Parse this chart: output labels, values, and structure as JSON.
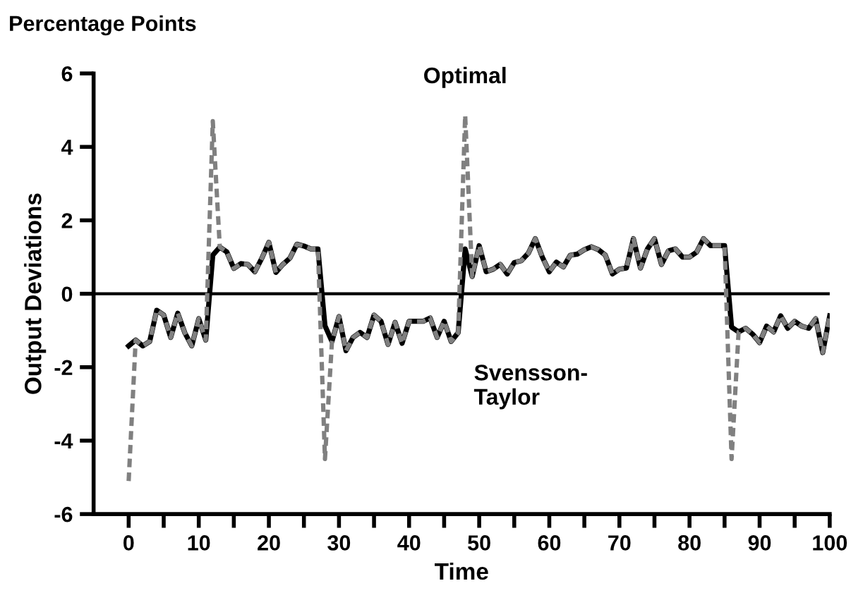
{
  "chart_data": {
    "type": "line",
    "title": "Percentage Points",
    "xlabel": "Time",
    "ylabel": "Output Deviations",
    "x": [
      0,
      1,
      2,
      3,
      4,
      5,
      6,
      7,
      8,
      9,
      10,
      11,
      12,
      13,
      14,
      15,
      16,
      17,
      18,
      19,
      20,
      21,
      22,
      23,
      24,
      25,
      26,
      27,
      28,
      29,
      30,
      31,
      32,
      33,
      34,
      35,
      36,
      37,
      38,
      39,
      40,
      41,
      42,
      43,
      44,
      45,
      46,
      47,
      48,
      49,
      50,
      51,
      52,
      53,
      54,
      55,
      56,
      57,
      58,
      59,
      60,
      61,
      62,
      63,
      64,
      65,
      66,
      67,
      68,
      69,
      70,
      71,
      72,
      73,
      74,
      75,
      76,
      77,
      78,
      79,
      80,
      81,
      82,
      83,
      84,
      85,
      86,
      87,
      88,
      89,
      90,
      91,
      92,
      93,
      94,
      95,
      96,
      97,
      98,
      99,
      100
    ],
    "series": [
      {
        "color": "#000000",
        "line_style": "solid",
        "values": [
          -1.42,
          -1.26,
          -1.42,
          -1.3,
          -0.45,
          -0.58,
          -1.19,
          -0.53,
          -1.06,
          -1.42,
          -0.68,
          -1.26,
          1.05,
          1.27,
          1.14,
          0.69,
          0.82,
          0.8,
          0.6,
          0.97,
          1.4,
          0.58,
          0.8,
          0.97,
          1.35,
          1.3,
          1.22,
          1.22,
          -0.87,
          -1.3,
          -0.62,
          -1.55,
          -1.19,
          -1.05,
          -1.19,
          -0.58,
          -0.75,
          -1.38,
          -0.78,
          -1.35,
          -0.75,
          -0.75,
          -0.75,
          -0.66,
          -1.19,
          -0.75,
          -1.3,
          -1.06,
          1.22,
          0.47,
          1.31,
          0.6,
          0.67,
          0.8,
          0.54,
          0.85,
          0.9,
          1.1,
          1.5,
          1.0,
          0.6,
          0.86,
          0.73,
          1.05,
          1.08,
          1.2,
          1.28,
          1.2,
          1.05,
          0.54,
          0.67,
          0.7,
          1.5,
          0.7,
          1.22,
          1.5,
          0.8,
          1.17,
          1.22,
          1.0,
          1.0,
          1.13,
          1.5,
          1.31,
          1.31,
          1.31,
          -0.91,
          -1.04,
          -0.94,
          -1.1,
          -1.33,
          -0.88,
          -1.04,
          -0.6,
          -0.94,
          -0.75,
          -0.88,
          -0.94,
          -0.68,
          -1.6,
          -0.6
        ]
      },
      {
        "color": "#808080",
        "line_style": "dashed",
        "values": [
          -5.1,
          -1.26,
          -1.42,
          -1.3,
          -0.45,
          -0.58,
          -1.19,
          -0.53,
          -1.06,
          -1.42,
          -0.68,
          -1.26,
          4.7,
          1.27,
          1.14,
          0.69,
          0.82,
          0.8,
          0.6,
          0.97,
          1.4,
          0.58,
          0.8,
          0.97,
          1.35,
          1.3,
          1.22,
          1.22,
          -4.5,
          -1.3,
          -0.62,
          -1.55,
          -1.19,
          -1.05,
          -1.19,
          -0.58,
          -0.75,
          -1.38,
          -0.78,
          -1.35,
          -0.75,
          -0.75,
          -0.75,
          -0.66,
          -1.19,
          -0.75,
          -1.3,
          -1.06,
          4.86,
          0.47,
          1.31,
          0.6,
          0.67,
          0.8,
          0.54,
          0.85,
          0.9,
          1.1,
          1.5,
          1.0,
          0.6,
          0.86,
          0.73,
          1.05,
          1.08,
          1.2,
          1.28,
          1.2,
          1.05,
          0.54,
          0.67,
          0.7,
          1.5,
          0.7,
          1.22,
          1.5,
          0.8,
          1.17,
          1.22,
          1.0,
          1.0,
          1.13,
          1.5,
          1.31,
          1.31,
          1.31,
          -4.5,
          -1.04,
          -0.94,
          -1.1,
          -1.33,
          -0.88,
          -1.04,
          -0.6,
          -0.94,
          -0.75,
          -0.88,
          -0.94,
          -0.68,
          -1.6,
          -0.6
        ]
      }
    ],
    "annotations": [
      {
        "text": "Optimal",
        "x": 48,
        "y": 4.86
      },
      {
        "text": "Svensson-\nTaylor",
        "x": 47,
        "y": -1.06
      }
    ],
    "ref_lines": [
      {
        "axis": "y",
        "value": 0,
        "color": "#000000"
      }
    ],
    "xlim": [
      -5,
      100
    ],
    "ylim": [
      -6,
      6
    ],
    "xticks": [
      0,
      {
        "value": 5,
        "label": null
      },
      10,
      {
        "value": 15,
        "label": null
      },
      20,
      {
        "value": 25,
        "label": null
      },
      30,
      {
        "value": 35,
        "label": null
      },
      40,
      {
        "value": 45,
        "label": null
      },
      50,
      {
        "value": 55,
        "label": null
      },
      60,
      {
        "value": 65,
        "label": null
      },
      70,
      {
        "value": 75,
        "label": null
      },
      80,
      {
        "value": 85,
        "label": null
      },
      90,
      {
        "value": 95,
        "label": null
      },
      100
    ],
    "yticks": [
      -6,
      -4,
      -2,
      0,
      2,
      4,
      6
    ],
    "grid": false,
    "legend": false
  }
}
